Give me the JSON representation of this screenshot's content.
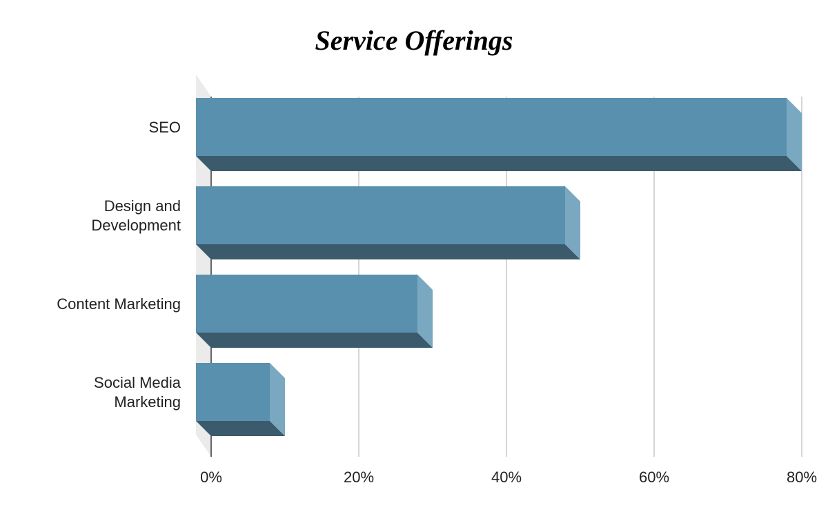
{
  "chart_data": {
    "type": "bar",
    "orientation": "horizontal",
    "style": "3d",
    "title": "Service Offerings",
    "categories": [
      [
        "SEO"
      ],
      [
        "Design and",
        "Development"
      ],
      [
        "Content Marketing"
      ],
      [
        "Social Media",
        "Marketing"
      ]
    ],
    "values": [
      80,
      50,
      30,
      10
    ],
    "unit": "%",
    "xlim": [
      0,
      80
    ],
    "xticks": [
      0,
      20,
      40,
      60,
      80
    ],
    "xtick_labels": [
      "0%",
      "20%",
      "40%",
      "60%",
      "80%"
    ],
    "grid": "vertical",
    "legend": "none",
    "colors": {
      "bar_front": "#5990ae",
      "bar_side": "#79a8c0",
      "bar_bottom": "#3b5b6d",
      "back_wall": "#ebebeb",
      "gridline": "#c8c8c8",
      "axis": "#333333"
    }
  }
}
